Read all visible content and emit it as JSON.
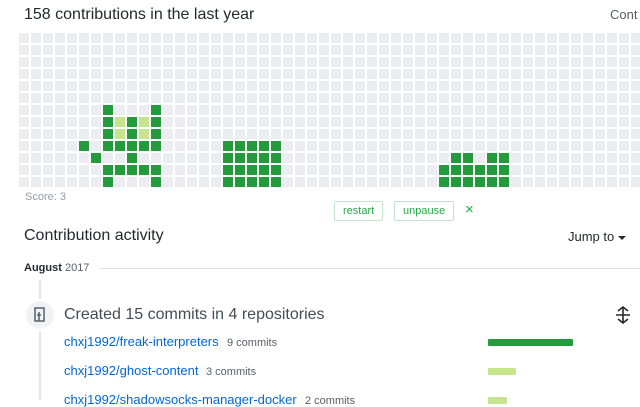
{
  "header": {
    "title": "158 contributions in the last year",
    "settings_link": "Cont"
  },
  "game": {
    "score_label": "Score:",
    "score": 3,
    "buttons": [
      "restart",
      "unpause",
      "×"
    ]
  },
  "activity": {
    "title": "Contribution activity",
    "jump": "Jump to",
    "month": "August",
    "year": "2017",
    "summary": "Created 15 commits in 4 repositories",
    "repos": [
      {
        "name": "chxj1992/freak-interpreters",
        "commits_label": "9 commits",
        "commits": 9,
        "color": "#239a3b"
      },
      {
        "name": "chxj1992/ghost-content",
        "commits_label": "3 commits",
        "commits": 3,
        "color": "#c6e48b"
      },
      {
        "name": "chxj1992/shadowsocks-manager-docker",
        "commits_label": "2 commits",
        "commits": 2,
        "color": "#c6e48b"
      }
    ]
  }
}
